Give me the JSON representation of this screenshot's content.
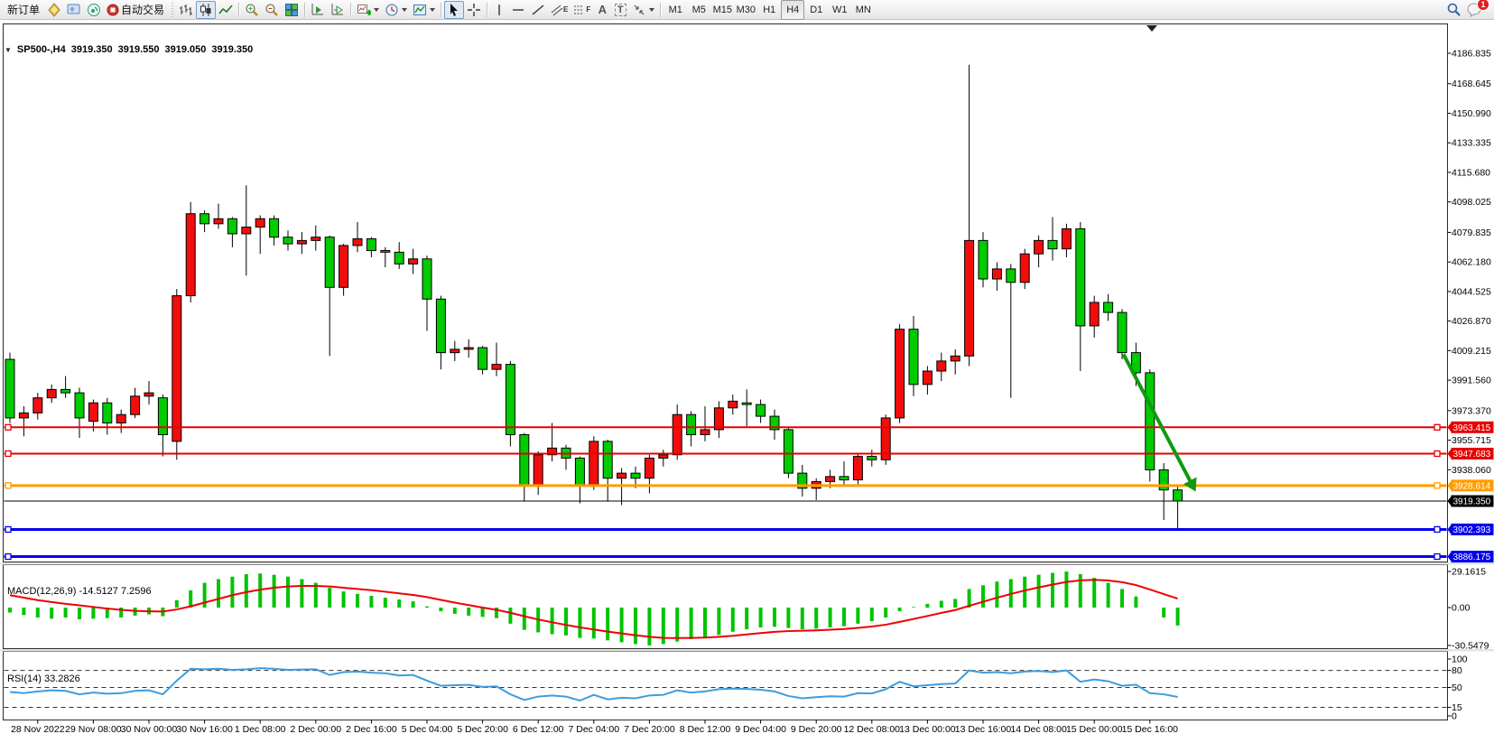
{
  "window": {
    "title_symbol": "SP500-,H4",
    "ohlc": {
      "open": "3919.350",
      "high": "3919.550",
      "low": "3919.050",
      "close": "3919.350"
    }
  },
  "toolbar": {
    "new_order_label": "新订单",
    "autotrading_label": "自动交易",
    "timeframes": [
      "M1",
      "M5",
      "M15",
      "M30",
      "H1",
      "H4",
      "D1",
      "W1",
      "MN"
    ],
    "active_timeframe": "H4",
    "chat_badge": "1",
    "icon_glyphs": {
      "one_click_collapse": "▼",
      "channel_letter": "E",
      "fibo_letter": "F",
      "text_tool": "A",
      "label_tool": "T"
    }
  },
  "macd": {
    "title": "MACD(12,26,9)",
    "main_value": "-14.5127",
    "signal_value": "7.2596"
  },
  "rsi": {
    "title": "RSI(14)",
    "value": "33.2826"
  },
  "colors": {
    "bull_candle": "#f20d0d",
    "bear_candle": "#00cc00",
    "macd_histogram": "#00c400",
    "macd_signal": "#ee0000",
    "rsi_line": "#3d9ce0",
    "bid_line": "#000000",
    "arrow": "#119911",
    "level_red": "#e60000",
    "level_orange": "#ff9c00",
    "level_blue": "#0000ee",
    "bid_tag": "#000000"
  },
  "chart_data": {
    "type": "candlestick",
    "symbol": "SP500-,H4",
    "period": "H4",
    "ylim": [
      3883,
      4204
    ],
    "price_ticks": [
      4186.835,
      4168.645,
      4150.99,
      4133.335,
      4115.68,
      4098.025,
      4079.835,
      4062.18,
      4044.525,
      4026.87,
      4009.215,
      3991.56,
      3973.37,
      3955.715,
      3938.06
    ],
    "x_labels": [
      "28 Nov 2022",
      "29 Nov 08:00",
      "30 Nov 00:00",
      "30 Nov 16:00",
      "1 Dec 08:00",
      "2 Dec 00:00",
      "2 Dec 16:00",
      "5 Dec 04:00",
      "5 Dec 20:00",
      "6 Dec 12:00",
      "7 Dec 04:00",
      "7 Dec 20:00",
      "8 Dec 12:00",
      "9 Dec 04:00",
      "9 Dec 20:00",
      "12 Dec 08:00",
      "13 Dec 00:00",
      "13 Dec 16:00",
      "14 Dec 08:00",
      "15 Dec 00:00",
      "15 Dec 16:00"
    ],
    "first_label_bar": 2,
    "bars_per_label": 4,
    "bid": 3919.35,
    "hlines": [
      {
        "price": 3963.415,
        "label": "3963.415",
        "color": "#e60000",
        "width": 2
      },
      {
        "price": 3947.683,
        "label": "3947.683",
        "color": "#e60000",
        "width": 2
      },
      {
        "price": 3928.614,
        "label": "3928.614",
        "color": "#ff9c00",
        "width": 3
      },
      {
        "price": 3902.393,
        "label": "3902.393",
        "color": "#0000ee",
        "width": 3
      },
      {
        "price": 3886.175,
        "label": "3886.175",
        "color": "#0000ee",
        "width": 3
      }
    ],
    "candles": [
      [
        4004,
        4008,
        3966,
        3969
      ],
      [
        3969,
        3976,
        3958,
        3972
      ],
      [
        3972,
        3984,
        3968,
        3981
      ],
      [
        3981,
        3989,
        3978,
        3986
      ],
      [
        3986,
        3994,
        3981,
        3984
      ],
      [
        3984,
        3987,
        3957,
        3969
      ],
      [
        3967,
        3980,
        3961,
        3978
      ],
      [
        3978,
        3981,
        3959,
        3966
      ],
      [
        3966,
        3974,
        3960,
        3971
      ],
      [
        3971,
        3987,
        3969,
        3982
      ],
      [
        3982,
        3991,
        3977,
        3984
      ],
      [
        3981,
        3983,
        3946,
        3959
      ],
      [
        3955,
        4046,
        3944,
        4042
      ],
      [
        4042,
        4098,
        4038,
        4091
      ],
      [
        4091,
        4093,
        4080,
        4085
      ],
      [
        4085,
        4097,
        4082,
        4088
      ],
      [
        4088,
        4089,
        4071,
        4079
      ],
      [
        4079,
        4108,
        4054,
        4083
      ],
      [
        4083,
        4090,
        4067,
        4088
      ],
      [
        4088,
        4090,
        4072,
        4077
      ],
      [
        4077,
        4081,
        4069,
        4073
      ],
      [
        4073,
        4080,
        4067,
        4075
      ],
      [
        4075,
        4084,
        4069,
        4077
      ],
      [
        4077,
        4078,
        4006,
        4047
      ],
      [
        4047,
        4073,
        4042,
        4072
      ],
      [
        4072,
        4086,
        4068,
        4076
      ],
      [
        4076,
        4077,
        4065,
        4069
      ],
      [
        4069,
        4071,
        4059,
        4068
      ],
      [
        4068,
        4074,
        4058,
        4061
      ],
      [
        4061,
        4070,
        4055,
        4064
      ],
      [
        4064,
        4066,
        4021,
        4040
      ],
      [
        4040,
        4042,
        3998,
        4008
      ],
      [
        4008,
        4015,
        4003,
        4010
      ],
      [
        4010,
        4016,
        4005,
        4011
      ],
      [
        4011,
        4012,
        3995,
        3998
      ],
      [
        3998,
        4014,
        3994,
        4001
      ],
      [
        4001,
        4003,
        3952,
        3959
      ],
      [
        3959,
        3960,
        3919,
        3929
      ],
      [
        3929,
        3949,
        3923,
        3947
      ],
      [
        3947,
        3966,
        3943,
        3951
      ],
      [
        3951,
        3953,
        3938,
        3945
      ],
      [
        3945,
        3946,
        3918,
        3929
      ],
      [
        3929,
        3958,
        3926,
        3955
      ],
      [
        3955,
        3956,
        3919,
        3933
      ],
      [
        3933,
        3939,
        3917,
        3936
      ],
      [
        3936,
        3940,
        3927,
        3933
      ],
      [
        3933,
        3947,
        3924,
        3945
      ],
      [
        3945,
        3950,
        3940,
        3947
      ],
      [
        3947,
        3977,
        3944,
        3971
      ],
      [
        3971,
        3973,
        3952,
        3959
      ],
      [
        3959,
        3976,
        3955,
        3962
      ],
      [
        3962,
        3979,
        3957,
        3975
      ],
      [
        3975,
        3983,
        3971,
        3979
      ],
      [
        3978,
        3986,
        3964,
        3977
      ],
      [
        3977,
        3980,
        3966,
        3970
      ],
      [
        3970,
        3974,
        3956,
        3962
      ],
      [
        3962,
        3963,
        3933,
        3936
      ],
      [
        3936,
        3941,
        3922,
        3927
      ],
      [
        3927,
        3933,
        3920,
        3931
      ],
      [
        3931,
        3938,
        3927,
        3934
      ],
      [
        3934,
        3943,
        3928,
        3932
      ],
      [
        3932,
        3948,
        3929,
        3946
      ],
      [
        3946,
        3950,
        3940,
        3944
      ],
      [
        3944,
        3971,
        3941,
        3969
      ],
      [
        3969,
        4025,
        3966,
        4022
      ],
      [
        4022,
        4030,
        3982,
        3989
      ],
      [
        3989,
        4000,
        3983,
        3997
      ],
      [
        3997,
        4008,
        3991,
        4003
      ],
      [
        4003,
        4010,
        3995,
        4006
      ],
      [
        4006,
        4180,
        4000,
        4075
      ],
      [
        4075,
        4080,
        4047,
        4052
      ],
      [
        4052,
        4062,
        4045,
        4058
      ],
      [
        4058,
        4061,
        3981,
        4050
      ],
      [
        4050,
        4070,
        4046,
        4067
      ],
      [
        4067,
        4078,
        4059,
        4075
      ],
      [
        4075,
        4089,
        4063,
        4070
      ],
      [
        4070,
        4085,
        4065,
        4082
      ],
      [
        4082,
        4086,
        3997,
        4024
      ],
      [
        4024,
        4042,
        4017,
        4038
      ],
      [
        4038,
        4043,
        4027,
        4032
      ],
      [
        4032,
        4034,
        4004,
        4008
      ],
      [
        4008,
        4014,
        3988,
        3996
      ],
      [
        3996,
        3998,
        3931,
        3938
      ],
      [
        3938,
        3942,
        3908,
        3926
      ],
      [
        3926,
        3929,
        3903,
        3919.35
      ]
    ],
    "indicators": [
      {
        "type": "macd",
        "name": "MACD(12,26,9)",
        "last_main": -14.5127,
        "last_signal": 7.2596,
        "axis_ticks": [
          29.1615,
          0.0,
          -30.5479
        ],
        "histogram": [
          -4,
          -6,
          -8,
          -9,
          -8,
          -9.5,
          -9,
          -8.5,
          -8,
          -6.5,
          -5.5,
          -7,
          6,
          14,
          20,
          23,
          25,
          27,
          27.5,
          26.5,
          25,
          23,
          20,
          16,
          13,
          11,
          9.5,
          8,
          6.5,
          5,
          1,
          -3,
          -5,
          -6.5,
          -7.5,
          -8.5,
          -13,
          -18,
          -20,
          -21.5,
          -22.5,
          -24.5,
          -25,
          -26.5,
          -28,
          -29.5,
          -30.55,
          -29.5,
          -27.5,
          -25.5,
          -24,
          -22,
          -19.5,
          -17.5,
          -16,
          -15.5,
          -16.5,
          -17.5,
          -17,
          -16,
          -15,
          -13,
          -11,
          -8,
          -3,
          0.5,
          3,
          5.5,
          7,
          15,
          18,
          21,
          23,
          25,
          26.5,
          28,
          29.16,
          27,
          24,
          20,
          15,
          9,
          0,
          -8,
          -14.51
        ],
        "signal": [
          10,
          8,
          6,
          4.5,
          3,
          1.8,
          0.5,
          -0.8,
          -1.8,
          -2.6,
          -3,
          -3.2,
          -1.5,
          1,
          4,
          7,
          10,
          12.5,
          14.5,
          16,
          17,
          17.5,
          17.5,
          17,
          16,
          15,
          14,
          12.8,
          11.5,
          10.2,
          8.5,
          6.2,
          4,
          2,
          0,
          -1.8,
          -4.2,
          -7,
          -9.6,
          -11.9,
          -14,
          -16,
          -17.7,
          -19.4,
          -20.9,
          -22.3,
          -23.6,
          -24.5,
          -24.6,
          -24.5,
          -24.2,
          -23.6,
          -22.8,
          -21.7,
          -20.6,
          -19.6,
          -19,
          -18.7,
          -18.4,
          -17.9,
          -17.3,
          -16.4,
          -15.3,
          -13.8,
          -11.6,
          -9.2,
          -6.8,
          -4.3,
          -2,
          1.4,
          4.7,
          8,
          11,
          13.8,
          16.3,
          18.6,
          20.7,
          22,
          22.4,
          21.9,
          20.5,
          18.2,
          14.6,
          10.9,
          7.26
        ]
      },
      {
        "type": "rsi",
        "name": "RSI(14)",
        "last": 33.2826,
        "levels": [
          80,
          50,
          15
        ],
        "axis_ticks": [
          100,
          80,
          50,
          15,
          0
        ],
        "series": [
          42,
          40,
          43,
          45,
          44,
          38,
          41,
          39,
          40,
          44,
          45,
          38,
          62,
          83,
          82,
          83,
          81,
          82,
          84,
          83,
          81,
          81.5,
          82,
          72,
          77,
          78,
          76,
          75,
          71,
          72,
          62,
          53,
          54,
          54.5,
          51,
          52,
          38,
          28,
          34,
          36,
          34,
          27,
          37,
          29,
          32,
          31,
          36,
          37,
          45,
          41,
          43,
          47,
          48,
          47.5,
          46,
          43,
          35,
          31,
          33,
          34.5,
          34,
          40,
          39.5,
          47,
          60,
          52,
          54,
          56,
          57,
          80,
          76,
          77,
          75,
          78,
          79,
          77,
          80,
          60,
          64,
          61,
          53,
          55,
          40,
          38,
          33.28
        ]
      }
    ],
    "annotations": [
      {
        "type": "trend-arrow",
        "from_bar": 80.1,
        "from_price": 4007,
        "to_bar": 85.3,
        "to_price": 3925,
        "color": "#119911"
      }
    ]
  }
}
